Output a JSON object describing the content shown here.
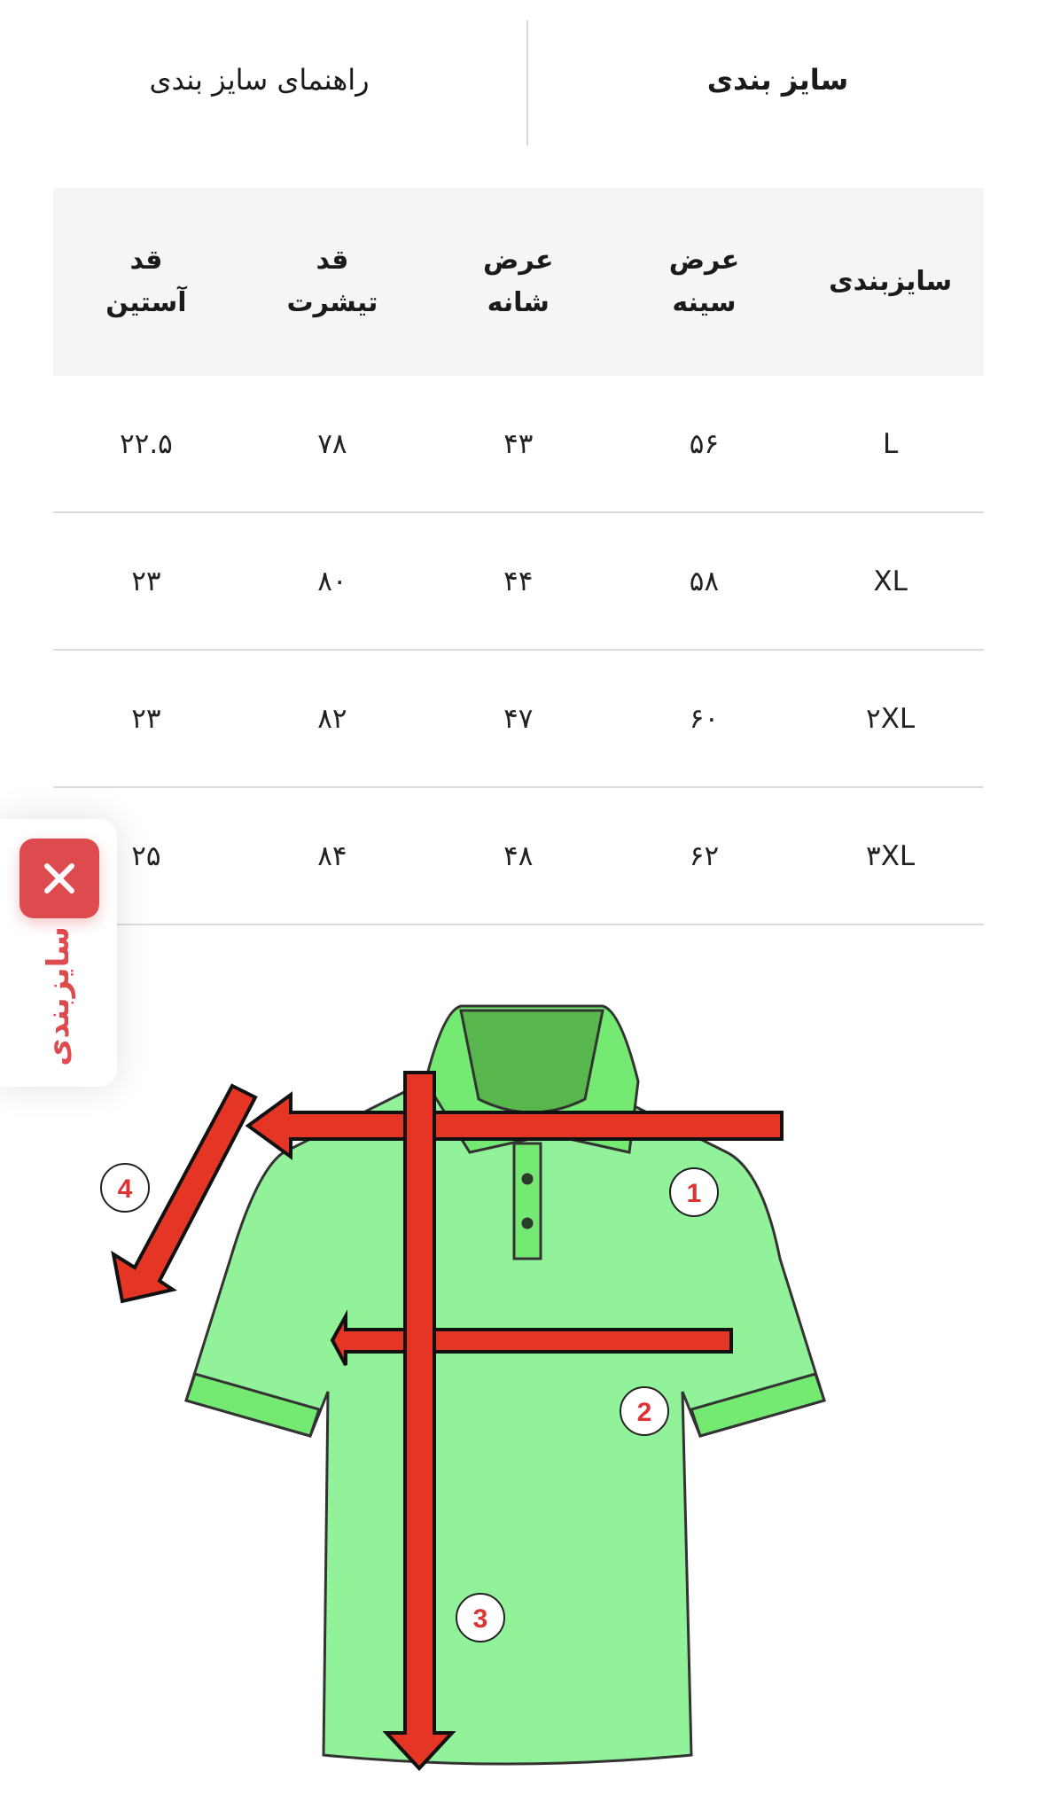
{
  "tabs": [
    {
      "label": "سایز بندی",
      "active": true
    },
    {
      "label": "راهنمای سایز بندی",
      "active": false
    }
  ],
  "table": {
    "headers": [
      [
        "سایزبندی"
      ],
      [
        "عرض",
        "سینه"
      ],
      [
        "عرض",
        "شانه"
      ],
      [
        "قد",
        "تیشرت"
      ],
      [
        "قد",
        "آستین"
      ]
    ],
    "rows": [
      [
        "L",
        "۵۶",
        "۴۳",
        "۷۸",
        "۲۲.۵"
      ],
      [
        "XL",
        "۵۸",
        "۴۴",
        "۸۰",
        "۲۳"
      ],
      [
        "۲XL",
        "۶۰",
        "۴۷",
        "۸۲",
        "۲۳"
      ],
      [
        "۳XL",
        "۶۲",
        "۴۸",
        "۸۴",
        "۲۵"
      ]
    ]
  },
  "floating_panel": {
    "label": "سایزبندی",
    "close_icon": "close-icon",
    "accent": "#dd4b4f"
  },
  "diagram": {
    "markers": [
      "1",
      "2",
      "3",
      "4"
    ],
    "shirt_color": "#92f29a",
    "arrow_color": "#e53524"
  }
}
